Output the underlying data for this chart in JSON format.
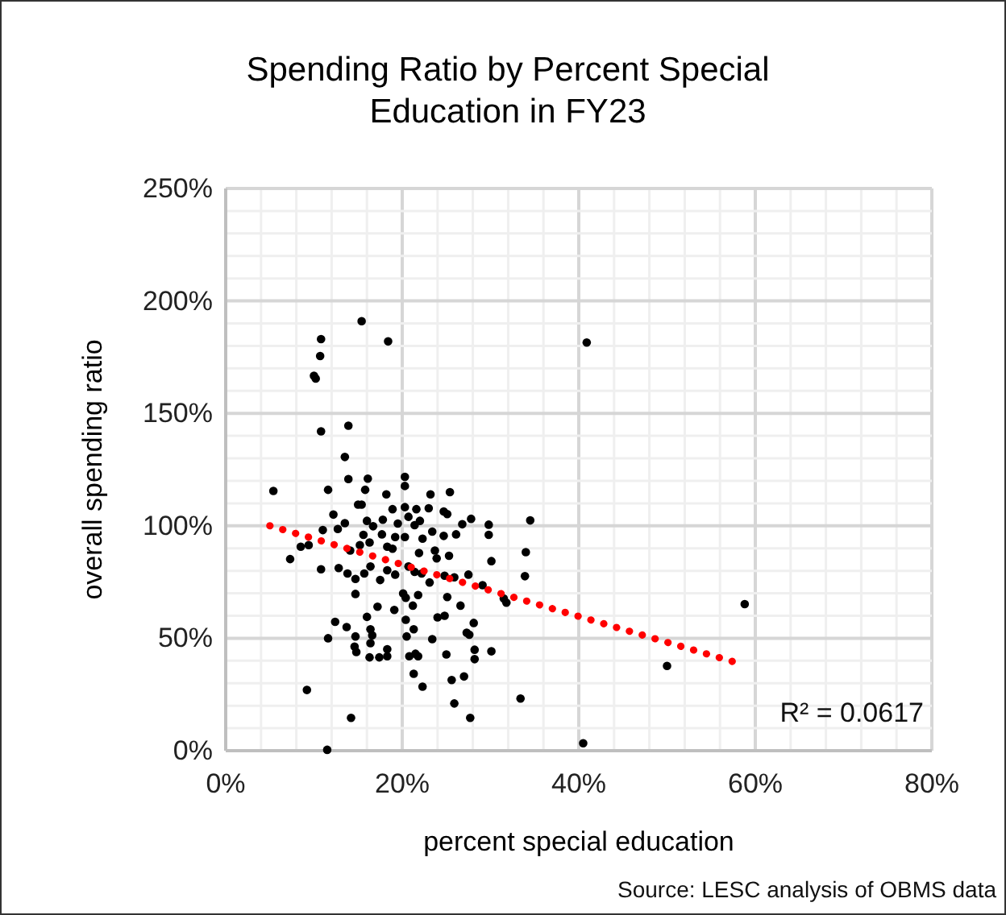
{
  "chart_data": {
    "type": "scatter",
    "title": "Spending Ratio by Percent Special Education in FY23",
    "xlabel": "percent special education",
    "ylabel": "overall spending ratio",
    "xlim": [
      0,
      80
    ],
    "ylim": [
      0,
      250
    ],
    "xticks": [
      {
        "value": 0,
        "label": "0%"
      },
      {
        "value": 4,
        "label": null
      },
      {
        "value": 8,
        "label": null
      },
      {
        "value": 12,
        "label": null
      },
      {
        "value": 16,
        "label": null
      },
      {
        "value": 20,
        "label": "20%"
      },
      {
        "value": 24,
        "label": null
      },
      {
        "value": 28,
        "label": null
      },
      {
        "value": 32,
        "label": null
      },
      {
        "value": 36,
        "label": null
      },
      {
        "value": 40,
        "label": "40%"
      },
      {
        "value": 44,
        "label": null
      },
      {
        "value": 48,
        "label": null
      },
      {
        "value": 52,
        "label": null
      },
      {
        "value": 56,
        "label": null
      },
      {
        "value": 60,
        "label": "60%"
      },
      {
        "value": 64,
        "label": null
      },
      {
        "value": 68,
        "label": null
      },
      {
        "value": 72,
        "label": null
      },
      {
        "value": 76,
        "label": null
      },
      {
        "value": 80,
        "label": "80%"
      }
    ],
    "yticks": [
      {
        "value": 0,
        "label": "0%"
      },
      {
        "value": 10,
        "label": null
      },
      {
        "value": 20,
        "label": null
      },
      {
        "value": 30,
        "label": null
      },
      {
        "value": 40,
        "label": null
      },
      {
        "value": 50,
        "label": "50%"
      },
      {
        "value": 60,
        "label": null
      },
      {
        "value": 70,
        "label": null
      },
      {
        "value": 80,
        "label": null
      },
      {
        "value": 90,
        "label": null
      },
      {
        "value": 100,
        "label": "100%"
      },
      {
        "value": 110,
        "label": null
      },
      {
        "value": 120,
        "label": null
      },
      {
        "value": 130,
        "label": null
      },
      {
        "value": 140,
        "label": null
      },
      {
        "value": 150,
        "label": "150%"
      },
      {
        "value": 160,
        "label": null
      },
      {
        "value": 170,
        "label": null
      },
      {
        "value": 180,
        "label": null
      },
      {
        "value": 190,
        "label": null
      },
      {
        "value": 200,
        "label": "200%"
      },
      {
        "value": 210,
        "label": null
      },
      {
        "value": 220,
        "label": null
      },
      {
        "value": 230,
        "label": null
      },
      {
        "value": 240,
        "label": null
      },
      {
        "value": 250,
        "label": "250%"
      }
    ],
    "grid": true,
    "series": [
      {
        "marker": "circle",
        "color": "#000000",
        "x": [
          15.4,
          10.8,
          18.4,
          10.7,
          10.0,
          10.2,
          10.8,
          13.9,
          13.5,
          13.9,
          16.1,
          20.3,
          5.4,
          11.6,
          15.8,
          18.2,
          20.3,
          23.2,
          25.4,
          12.2,
          15.0,
          15.4,
          18.9,
          20.3,
          21.6,
          23.0,
          24.7,
          25.1,
          27.8,
          29.8,
          29.8,
          34.5,
          11.0,
          12.7,
          13.5,
          16.0,
          16.7,
          17.8,
          19.5,
          20.7,
          22.0,
          23.4,
          24.7,
          26.1,
          26.8,
          15.6,
          17.7,
          19.2,
          20.3,
          21.4,
          22.3,
          8.5,
          9.4,
          7.3,
          10.8,
          12.8,
          14.1,
          15.2,
          16.3,
          18.3,
          18.9,
          21.9,
          23.7,
          23.9,
          25.3,
          30.1,
          34.0,
          33.9,
          13.8,
          14.7,
          15.7,
          16.4,
          17.5,
          18.3,
          19.2,
          20.7,
          21.4,
          22.2,
          23.1,
          24.8,
          25.9,
          27.5,
          29.1,
          31.8,
          31.5,
          14.7,
          20.1,
          20.4,
          21.8,
          25.1,
          26.6,
          17.2,
          19.1,
          21.2,
          16.0,
          24.0,
          24.8,
          12.4,
          13.7,
          16.4,
          16.6,
          20.4,
          21.3,
          27.3,
          28.1,
          14.7,
          20.5,
          23.4,
          27.6,
          11.6,
          14.6,
          14.8,
          16.3,
          17.4,
          18.3,
          18.3,
          16.4,
          20.8,
          21.5,
          21.8,
          25.0,
          28.2,
          30.1,
          28.2,
          21.3,
          22.3,
          25.6,
          27.0,
          9.2,
          33.4,
          14.2,
          25.9,
          27.7,
          11.5,
          40.9,
          58.8,
          50.0,
          40.5
        ],
        "values": [
          191,
          183,
          182,
          175.5,
          166.7,
          165.5,
          142,
          144.5,
          130.6,
          120.8,
          121,
          121.8,
          115.5,
          116,
          116,
          114,
          117.7,
          114,
          115,
          105,
          109.4,
          109.4,
          107.4,
          108.3,
          107.4,
          107.8,
          106.4,
          105.2,
          103.1,
          100.5,
          96,
          102.4,
          98.1,
          98.6,
          101.2,
          102.2,
          99.8,
          102.7,
          101,
          104,
          102.2,
          97.4,
          95.5,
          96.2,
          100.7,
          96,
          96.2,
          95,
          95,
          100.3,
          94.3,
          90.7,
          91.4,
          85.2,
          80.7,
          81.2,
          89,
          91.4,
          92.6,
          90.7,
          89.8,
          87.9,
          89,
          85.5,
          86.7,
          84.3,
          88.3,
          77.6,
          78.8,
          76.4,
          78.8,
          81.9,
          75.9,
          80.2,
          78.3,
          81.9,
          79.5,
          78.8,
          74.8,
          77.8,
          77.1,
          78.3,
          73.6,
          65.8,
          67.7,
          69.7,
          69.9,
          68,
          69.2,
          68.3,
          64.5,
          64,
          62.6,
          64.5,
          59.5,
          59.3,
          60,
          57.3,
          55,
          54,
          51.3,
          58.2,
          54,
          52.5,
          56.8,
          50.8,
          50.8,
          49.6,
          51.6,
          50,
          46.3,
          43.9,
          41.5,
          41.5,
          42,
          45.1,
          47.8,
          42,
          43.1,
          42,
          42.8,
          40.7,
          44.2,
          44.9,
          34.2,
          28.5,
          31.4,
          33,
          27,
          23.2,
          14.6,
          21,
          14.6,
          0.4,
          181.5,
          65.2,
          37.7,
          3.3
        ]
      },
      {
        "type": "line",
        "marker": "none",
        "color": "#ff0000",
        "line_style": "dotted",
        "x": [
          5,
          58
        ],
        "values": [
          100,
          39
        ]
      }
    ],
    "annotations": [
      "R² = 0.0617",
      "Source:  LESC analysis of OBMS data"
    ]
  }
}
